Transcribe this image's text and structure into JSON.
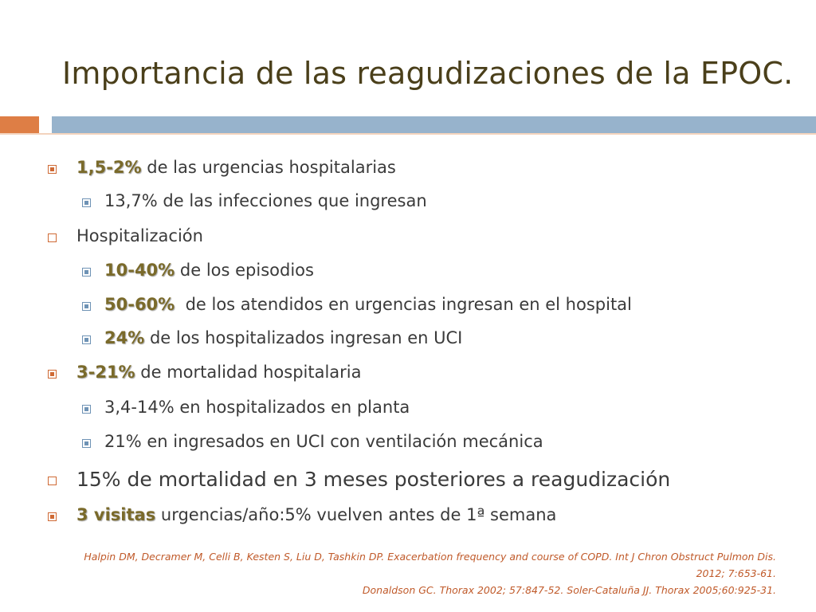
{
  "slide": {
    "title": "Importancia de las reagudizaciones de la EPOC.",
    "accent_orange": "#de7e45",
    "accent_blue": "#97b3cc"
  },
  "bullets": [
    {
      "highlight": "1,5-2%",
      "text": " de las urgencias hospitalarias"
    },
    {
      "text": "13,7% de las infecciones que ingresan"
    },
    {
      "text": "Hospitalización"
    },
    {
      "highlight": "10-40%",
      "text": " de los episodios"
    },
    {
      "highlight": "50-60%",
      "text": "  de los atendidos en urgencias ingresan en el hospital"
    },
    {
      "highlight": "24%",
      "text": " de los hospitalizados ingresan en UCI"
    },
    {
      "highlight": "3-21%",
      "text": " de mortalidad hospitalaria"
    },
    {
      "text": "3,4-14% en hospitalizados en planta"
    },
    {
      "text": "21% en ingresados en UCI con ventilación mecánica"
    },
    {
      "text": "15% de mortalidad en 3 meses posteriores a reagudización"
    },
    {
      "highlight": "3 visitas",
      "text": " urgencias/año:5% vuelven antes de 1ª semana"
    }
  ],
  "references": {
    "line1": "Halpin DM, Decramer M, Celli B, Kesten S, Liu D, Tashkin DP. Exacerbation frequency and course of COPD. Int J Chron Obstruct Pulmon Dis.",
    "line2": "2012; 7:653-61.",
    "line3": "Donaldson GC. Thorax 2002; 57:847-52. Soler-Cataluña JJ. Thorax 2005;60:925-31."
  }
}
